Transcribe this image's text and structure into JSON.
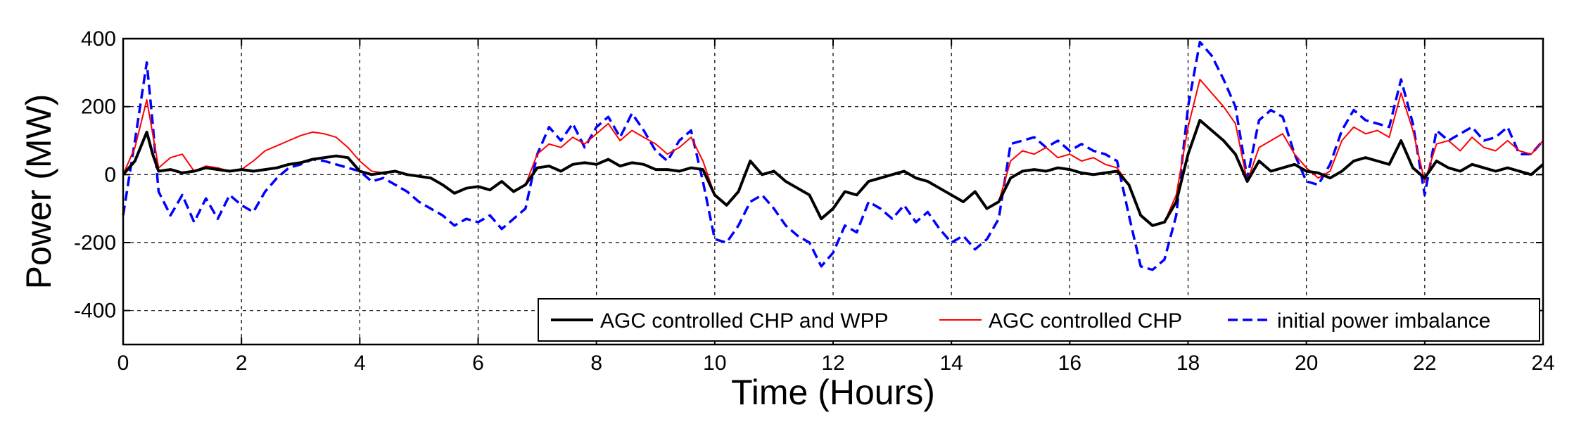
{
  "chart_data": {
    "type": "line",
    "title": "",
    "xlabel": "Time (Hours)",
    "ylabel": "Power (MW)",
    "xlim": [
      0,
      24
    ],
    "ylim": [
      -500,
      400
    ],
    "xticks": [
      0,
      2,
      4,
      6,
      8,
      10,
      12,
      14,
      16,
      18,
      20,
      22,
      24
    ],
    "yticks": [
      -400,
      -200,
      0,
      200,
      400
    ],
    "grid": true,
    "legend_position": "bottom-right",
    "series": [
      {
        "name": "AGC controlled CHP and WPP",
        "color": "#000000",
        "style": "solid",
        "x": [
          0,
          0.2,
          0.4,
          0.5,
          0.6,
          0.8,
          1.0,
          1.2,
          1.4,
          1.6,
          1.8,
          2.0,
          2.2,
          2.4,
          2.6,
          2.8,
          3.0,
          3.2,
          3.4,
          3.6,
          3.8,
          4.0,
          4.2,
          4.4,
          4.6,
          4.8,
          5.0,
          5.2,
          5.4,
          5.6,
          5.8,
          6.0,
          6.2,
          6.4,
          6.6,
          6.8,
          7.0,
          7.2,
          7.4,
          7.6,
          7.8,
          8.0,
          8.2,
          8.4,
          8.6,
          8.8,
          9.0,
          9.2,
          9.4,
          9.6,
          9.8,
          10.0,
          10.2,
          10.4,
          10.6,
          10.8,
          11.0,
          11.2,
          11.4,
          11.6,
          11.8,
          12.0,
          12.2,
          12.4,
          12.6,
          12.8,
          13.0,
          13.2,
          13.4,
          13.6,
          13.8,
          14.0,
          14.2,
          14.4,
          14.6,
          14.8,
          15.0,
          15.2,
          15.4,
          15.6,
          15.8,
          16.0,
          16.2,
          16.4,
          16.6,
          16.8,
          17.0,
          17.2,
          17.4,
          17.6,
          17.8,
          18.0,
          18.2,
          18.4,
          18.6,
          18.8,
          19.0,
          19.2,
          19.4,
          19.6,
          19.8,
          20.0,
          20.2,
          20.4,
          20.6,
          20.8,
          21.0,
          21.2,
          21.4,
          21.6,
          21.8,
          22.0,
          22.2,
          22.4,
          22.6,
          22.8,
          23.0,
          23.2,
          23.4,
          23.6,
          23.8,
          24.0
        ],
        "y": [
          0,
          40,
          125,
          60,
          10,
          15,
          5,
          10,
          20,
          15,
          10,
          15,
          10,
          15,
          20,
          30,
          35,
          45,
          50,
          55,
          50,
          10,
          0,
          5,
          10,
          0,
          -5,
          -10,
          -30,
          -55,
          -40,
          -35,
          -45,
          -20,
          -50,
          -30,
          20,
          25,
          10,
          30,
          35,
          30,
          45,
          25,
          35,
          30,
          15,
          15,
          10,
          20,
          15,
          -60,
          -90,
          -50,
          40,
          0,
          10,
          -20,
          -40,
          -60,
          -130,
          -100,
          -50,
          -60,
          -20,
          -10,
          0,
          10,
          -10,
          -20,
          -40,
          -60,
          -80,
          -50,
          -100,
          -80,
          -10,
          10,
          15,
          10,
          20,
          15,
          5,
          0,
          5,
          10,
          -30,
          -120,
          -150,
          -140,
          -80,
          60,
          160,
          130,
          100,
          60,
          -20,
          40,
          10,
          20,
          30,
          10,
          5,
          -10,
          10,
          40,
          50,
          40,
          30,
          100,
          20,
          -10,
          40,
          20,
          10,
          30,
          20,
          10,
          20,
          10,
          0,
          30
        ]
      },
      {
        "name": "AGC controlled CHP",
        "color": "#ff0000",
        "style": "solid",
        "x": [
          0,
          0.2,
          0.4,
          0.5,
          0.6,
          0.8,
          1.0,
          1.2,
          1.4,
          1.6,
          1.8,
          2.0,
          2.2,
          2.4,
          2.6,
          2.8,
          3.0,
          3.2,
          3.4,
          3.6,
          3.8,
          4.0,
          4.2,
          4.4,
          4.6,
          4.8,
          5.0,
          5.2,
          5.4,
          5.6,
          5.8,
          6.0,
          6.2,
          6.4,
          6.6,
          6.8,
          7.0,
          7.2,
          7.4,
          7.6,
          7.8,
          8.0,
          8.2,
          8.4,
          8.6,
          8.8,
          9.0,
          9.2,
          9.4,
          9.6,
          9.8,
          10.0,
          10.2,
          10.4,
          10.6,
          10.8,
          11.0,
          11.2,
          11.4,
          11.6,
          11.8,
          12.0,
          12.2,
          12.4,
          12.6,
          12.8,
          13.0,
          13.2,
          13.4,
          13.6,
          13.8,
          14.0,
          14.2,
          14.4,
          14.6,
          14.8,
          15.0,
          15.2,
          15.4,
          15.6,
          15.8,
          16.0,
          16.2,
          16.4,
          16.6,
          16.8,
          17.0,
          17.2,
          17.4,
          17.6,
          17.8,
          18.0,
          18.2,
          18.4,
          18.6,
          18.8,
          19.0,
          19.2,
          19.4,
          19.6,
          19.8,
          20.0,
          20.2,
          20.4,
          20.6,
          20.8,
          21.0,
          21.2,
          21.4,
          21.6,
          21.8,
          22.0,
          22.2,
          22.4,
          22.6,
          22.8,
          23.0,
          23.2,
          23.4,
          23.6,
          23.8,
          24.0
        ],
        "y": [
          0,
          80,
          220,
          120,
          20,
          50,
          60,
          10,
          25,
          20,
          10,
          15,
          40,
          70,
          85,
          100,
          115,
          125,
          120,
          110,
          80,
          40,
          10,
          5,
          10,
          0,
          -5,
          -10,
          -30,
          -55,
          -40,
          -35,
          -45,
          -20,
          -50,
          -30,
          60,
          90,
          80,
          110,
          90,
          120,
          150,
          100,
          130,
          110,
          90,
          60,
          80,
          110,
          40,
          -60,
          -90,
          -50,
          40,
          0,
          10,
          -20,
          -40,
          -60,
          -130,
          -100,
          -50,
          -60,
          -20,
          -10,
          0,
          10,
          -10,
          -20,
          -40,
          -60,
          -80,
          -50,
          -100,
          -80,
          40,
          70,
          60,
          80,
          50,
          60,
          40,
          50,
          30,
          20,
          -30,
          -120,
          -150,
          -140,
          -60,
          140,
          280,
          240,
          200,
          150,
          -20,
          80,
          100,
          120,
          60,
          20,
          -10,
          10,
          100,
          140,
          120,
          130,
          110,
          240,
          130,
          -20,
          90,
          100,
          70,
          110,
          80,
          70,
          100,
          70,
          60,
          100
        ]
      },
      {
        "name": "initial power imbalance",
        "color": "#0000ff",
        "style": "dashed",
        "x": [
          0,
          0.2,
          0.4,
          0.5,
          0.6,
          0.8,
          1.0,
          1.2,
          1.4,
          1.6,
          1.8,
          2.0,
          2.2,
          2.4,
          2.6,
          2.8,
          3.0,
          3.2,
          3.4,
          3.6,
          3.8,
          4.0,
          4.2,
          4.4,
          4.6,
          4.8,
          5.0,
          5.2,
          5.4,
          5.6,
          5.8,
          6.0,
          6.2,
          6.4,
          6.6,
          6.8,
          7.0,
          7.2,
          7.4,
          7.6,
          7.8,
          8.0,
          8.2,
          8.4,
          8.6,
          8.8,
          9.0,
          9.2,
          9.4,
          9.6,
          9.8,
          10.0,
          10.2,
          10.4,
          10.6,
          10.8,
          11.0,
          11.2,
          11.4,
          11.6,
          11.8,
          12.0,
          12.2,
          12.4,
          12.6,
          12.8,
          13.0,
          13.2,
          13.4,
          13.6,
          13.8,
          14.0,
          14.2,
          14.4,
          14.6,
          14.8,
          15.0,
          15.2,
          15.4,
          15.6,
          15.8,
          16.0,
          16.2,
          16.4,
          16.6,
          16.8,
          17.0,
          17.2,
          17.4,
          17.6,
          17.8,
          18.0,
          18.2,
          18.4,
          18.6,
          18.8,
          19.0,
          19.2,
          19.4,
          19.6,
          19.8,
          20.0,
          20.2,
          20.4,
          20.6,
          20.8,
          21.0,
          21.2,
          21.4,
          21.6,
          21.8,
          22.0,
          22.2,
          22.4,
          22.6,
          22.8,
          23.0,
          23.2,
          23.4,
          23.6,
          23.8,
          24.0
        ],
        "y": [
          -120,
          100,
          330,
          150,
          -50,
          -120,
          -60,
          -140,
          -70,
          -130,
          -60,
          -90,
          -110,
          -50,
          -10,
          20,
          30,
          45,
          40,
          30,
          20,
          10,
          -20,
          -10,
          -30,
          -50,
          -80,
          -100,
          -120,
          -150,
          -130,
          -140,
          -120,
          -160,
          -130,
          -100,
          60,
          140,
          100,
          150,
          80,
          140,
          170,
          110,
          180,
          130,
          70,
          40,
          100,
          130,
          -20,
          -190,
          -200,
          -150,
          -80,
          -60,
          -100,
          -150,
          -180,
          -200,
          -270,
          -230,
          -150,
          -170,
          -80,
          -100,
          -130,
          -90,
          -140,
          -110,
          -160,
          -200,
          -180,
          -220,
          -190,
          -130,
          90,
          100,
          110,
          80,
          100,
          70,
          90,
          70,
          60,
          40,
          -120,
          -270,
          -280,
          -250,
          -120,
          200,
          390,
          350,
          280,
          200,
          -10,
          160,
          190,
          170,
          60,
          -20,
          -30,
          30,
          130,
          190,
          160,
          150,
          140,
          280,
          150,
          -60,
          130,
          100,
          120,
          140,
          100,
          110,
          140,
          60,
          60,
          100
        ]
      }
    ]
  }
}
